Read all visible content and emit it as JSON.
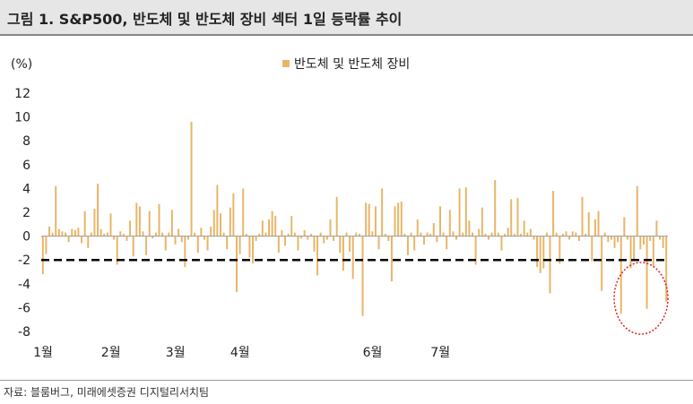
{
  "header": {
    "title": "그림 1. S&P500, 반도체 및 반도체 장비 섹터 1일 등락률 추이"
  },
  "footer": {
    "source": "자료: 블룸버그, 미래에셋증권 디지털리서치팀"
  },
  "chart_data": {
    "type": "bar",
    "unit_label": "(%)",
    "ylim": [
      -8,
      12
    ],
    "yticks": [
      12,
      10,
      8,
      6,
      4,
      2,
      0,
      -2,
      -4,
      -6,
      -8
    ],
    "month_labels": [
      "1월",
      "2월",
      "3월",
      "4월",
      "6월",
      "7월"
    ],
    "legend": [
      "반도체 및 반도체 장비"
    ],
    "reference_line": -2,
    "colors": {
      "bar": "#E8B567",
      "reference": "#000000",
      "highlight": "#E02020"
    },
    "series": [
      {
        "name": "반도체 및 반도체 장비",
        "values": [
          -3.2,
          -1.5,
          0.8,
          0.3,
          4.2,
          0.6,
          0.4,
          0.3,
          -0.5,
          0.6,
          0.5,
          0.7,
          -0.6,
          2.1,
          -1.0,
          0.3,
          2.3,
          4.4,
          0.6,
          0.2,
          0.3,
          1.9,
          -0.3,
          -2.4,
          0.4,
          0.2,
          -0.4,
          1.3,
          -1.7,
          2.8,
          2.5,
          0.4,
          -1.6,
          2.1,
          -0.2,
          0.3,
          2.7,
          0.3,
          -1.2,
          0.3,
          2.2,
          -0.7,
          0.6,
          -0.5,
          -2.6,
          -0.3,
          9.6,
          0.3,
          -1.4,
          0.7,
          -0.3,
          -1.2,
          0.8,
          2.2,
          4.3,
          1.9,
          0.3,
          -1.1,
          2.4,
          3.6,
          -4.7,
          -1.5,
          4.0,
          0.2,
          -1.8,
          -2.3,
          -0.4,
          0.2,
          1.3,
          0.3,
          1.4,
          2.1,
          1.7,
          -1.4,
          0.5,
          -0.8,
          0.2,
          1.7,
          0.3,
          -1.2,
          -0.2,
          0.5,
          -0.3,
          0.2,
          -1.3,
          -3.3,
          0.3,
          -0.6,
          -0.3,
          1.4,
          -0.4,
          3.3,
          -1.4,
          -2.9,
          0.3,
          -1.3,
          -3.6,
          0.3,
          0.2,
          -6.7,
          2.8,
          2.7,
          0.4,
          2.5,
          -1.1,
          4.0,
          0.2,
          -0.4,
          -3.8,
          2.5,
          2.8,
          2.9,
          0.2,
          -1.6,
          0.3,
          -1.2,
          1.4,
          0.3,
          -0.7,
          0.3,
          0.2,
          1.1,
          -0.5,
          2.5,
          0.3,
          -1.1,
          2.2,
          0.4,
          -0.3,
          4.0,
          0.3,
          4.1,
          1.3,
          0.3,
          -2.4,
          0.6,
          2.4,
          0.2,
          -0.3,
          0.3,
          4.7,
          0.3,
          -1.2,
          0.2,
          0.7,
          3.1,
          0.2,
          3.2,
          0.2,
          1.3,
          0.3,
          0.6,
          -0.3,
          -2.6,
          -3.1,
          -2.7,
          0.3,
          -4.8,
          3.8,
          0.3,
          -2.3,
          0.2,
          0.4,
          -0.3,
          0.4,
          0.3,
          -0.4,
          3.3,
          0.2,
          2.0,
          -2.1,
          1.4,
          2.1,
          -4.6,
          0.3,
          -0.5,
          -0.3,
          -1.0,
          -0.5,
          -6.5,
          1.6,
          -0.3,
          -2.7,
          -2.1,
          4.2,
          -1.1,
          -0.7,
          -6.1,
          -0.4,
          -2.5,
          1.3,
          -0.3,
          -1.0,
          -5.5
        ]
      }
    ]
  }
}
